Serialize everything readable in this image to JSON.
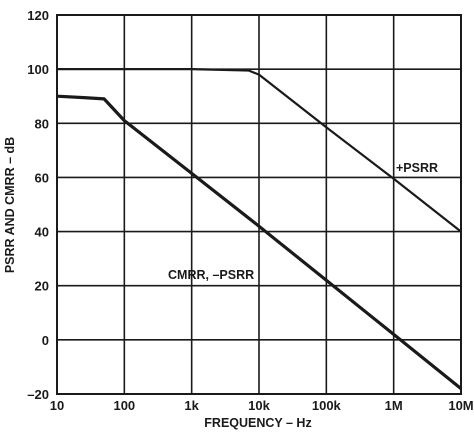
{
  "chart_data": {
    "type": "line",
    "xscale": "log",
    "xlabel": "FREQUENCY – Hz",
    "ylabel": "PSRR AND CMRR – dB",
    "xlim": [
      10,
      10000000
    ],
    "ylim": [
      -20,
      120
    ],
    "grid": true,
    "x_ticks": [
      10,
      100,
      1000,
      10000,
      100000,
      1000000,
      10000000
    ],
    "x_tick_labels": [
      "10",
      "100",
      "1k",
      "10k",
      "100k",
      "1M",
      "10M"
    ],
    "y_ticks": [
      -20,
      0,
      20,
      40,
      60,
      80,
      100,
      120
    ],
    "y_tick_labels": [
      "–20",
      "0",
      "20",
      "40",
      "60",
      "80",
      "100",
      "120"
    ],
    "series": [
      {
        "name": "+PSRR",
        "x": [
          10,
          1000,
          7000,
          10000,
          100000,
          1000000,
          10000000
        ],
        "y": [
          100,
          100,
          99.5,
          98,
          78.5,
          59.5,
          40
        ]
      },
      {
        "name": "CMRR, –PSRR",
        "x": [
          10,
          25,
          50,
          100,
          1000,
          10000,
          100000,
          1000000,
          10000000
        ],
        "y": [
          90,
          89.5,
          89,
          81,
          61.5,
          42,
          22,
          2,
          -18
        ]
      }
    ],
    "colors": {
      "axes": "#1a1a1a",
      "series": "#1a1a1a",
      "background": "#ffffff"
    }
  }
}
